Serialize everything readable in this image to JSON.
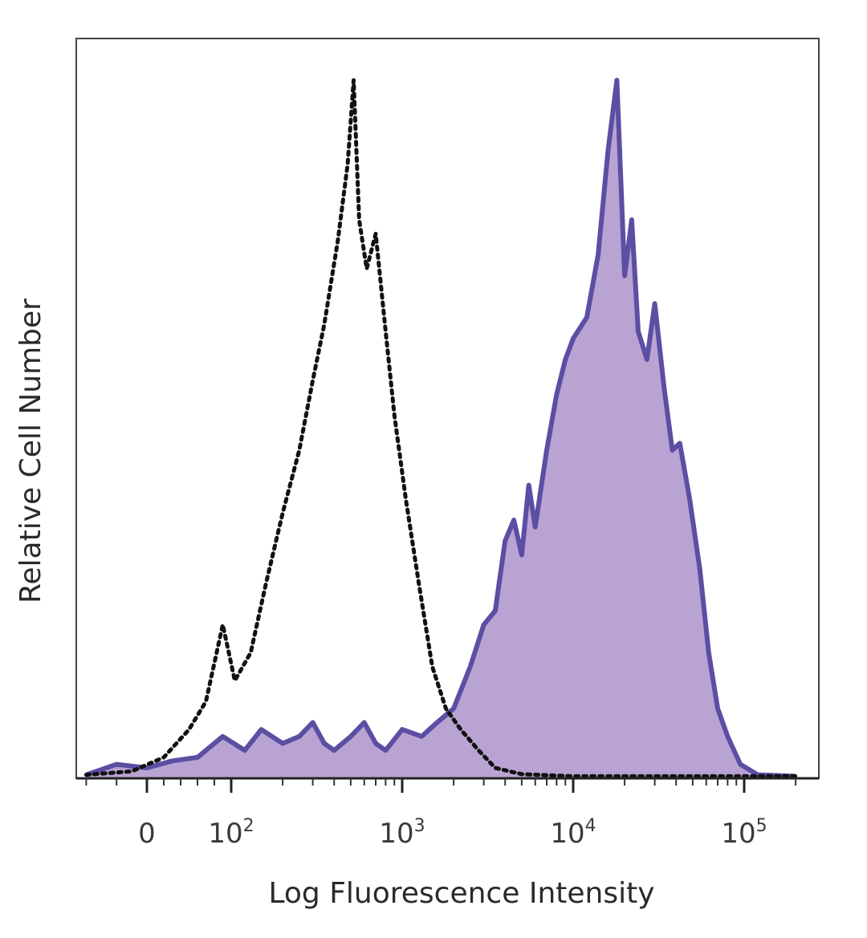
{
  "chart_data": {
    "type": "area",
    "xlabel": "Log Fluorescence Intensity",
    "ylabel": "Relative Cell Number",
    "x_scale": "biexponential",
    "xlim": [
      -50,
      250000
    ],
    "ylim": [
      0,
      100
    ],
    "grid": false,
    "x_ticks": [
      {
        "value": 0,
        "label": "0",
        "base": "0",
        "exp": ""
      },
      {
        "value": 100,
        "label": "10^2",
        "base": "10",
        "exp": "2"
      },
      {
        "value": 1000,
        "label": "10^3",
        "base": "10",
        "exp": "3"
      },
      {
        "value": 10000,
        "label": "10^4",
        "base": "10",
        "exp": "4"
      },
      {
        "value": 100000,
        "label": "10^5",
        "base": "10",
        "exp": "5"
      }
    ],
    "series": [
      {
        "style": "dotted black outline",
        "color": "#111111",
        "points": [
          {
            "x": -40,
            "y": 0.5
          },
          {
            "x": -10,
            "y": 1
          },
          {
            "x": 20,
            "y": 3
          },
          {
            "x": 50,
            "y": 7
          },
          {
            "x": 70,
            "y": 11
          },
          {
            "x": 90,
            "y": 22
          },
          {
            "x": 105,
            "y": 14
          },
          {
            "x": 130,
            "y": 18
          },
          {
            "x": 160,
            "y": 28
          },
          {
            "x": 200,
            "y": 38
          },
          {
            "x": 250,
            "y": 47
          },
          {
            "x": 300,
            "y": 57
          },
          {
            "x": 350,
            "y": 65
          },
          {
            "x": 420,
            "y": 77
          },
          {
            "x": 480,
            "y": 88
          },
          {
            "x": 520,
            "y": 100
          },
          {
            "x": 560,
            "y": 80
          },
          {
            "x": 620,
            "y": 73
          },
          {
            "x": 700,
            "y": 78
          },
          {
            "x": 800,
            "y": 64
          },
          {
            "x": 900,
            "y": 52
          },
          {
            "x": 1050,
            "y": 40
          },
          {
            "x": 1250,
            "y": 28
          },
          {
            "x": 1500,
            "y": 16
          },
          {
            "x": 1800,
            "y": 10
          },
          {
            "x": 2200,
            "y": 7
          },
          {
            "x": 2800,
            "y": 4
          },
          {
            "x": 3500,
            "y": 1.5
          },
          {
            "x": 5000,
            "y": 0.6
          },
          {
            "x": 10000,
            "y": 0.3
          },
          {
            "x": 50000,
            "y": 0.3
          },
          {
            "x": 200000,
            "y": 0.3
          }
        ]
      },
      {
        "style": "filled purple",
        "color": "#5b4ea3",
        "fill": "#b9a3d3",
        "points": [
          {
            "x": -40,
            "y": 0.5
          },
          {
            "x": -20,
            "y": 2
          },
          {
            "x": 0,
            "y": 1.5
          },
          {
            "x": 30,
            "y": 2.5
          },
          {
            "x": 60,
            "y": 3
          },
          {
            "x": 90,
            "y": 6
          },
          {
            "x": 120,
            "y": 4
          },
          {
            "x": 150,
            "y": 7
          },
          {
            "x": 200,
            "y": 5
          },
          {
            "x": 250,
            "y": 6
          },
          {
            "x": 300,
            "y": 8
          },
          {
            "x": 350,
            "y": 5
          },
          {
            "x": 400,
            "y": 4
          },
          {
            "x": 500,
            "y": 6
          },
          {
            "x": 600,
            "y": 8
          },
          {
            "x": 700,
            "y": 5
          },
          {
            "x": 800,
            "y": 4
          },
          {
            "x": 1000,
            "y": 7
          },
          {
            "x": 1300,
            "y": 6
          },
          {
            "x": 1600,
            "y": 8
          },
          {
            "x": 2000,
            "y": 10
          },
          {
            "x": 2500,
            "y": 16
          },
          {
            "x": 3000,
            "y": 22
          },
          {
            "x": 3500,
            "y": 24
          },
          {
            "x": 4000,
            "y": 34
          },
          {
            "x": 4500,
            "y": 37
          },
          {
            "x": 5000,
            "y": 32
          },
          {
            "x": 5500,
            "y": 42
          },
          {
            "x": 6000,
            "y": 36
          },
          {
            "x": 7000,
            "y": 47
          },
          {
            "x": 8000,
            "y": 55
          },
          {
            "x": 9000,
            "y": 60
          },
          {
            "x": 10000,
            "y": 63
          },
          {
            "x": 12000,
            "y": 66
          },
          {
            "x": 14000,
            "y": 75
          },
          {
            "x": 16000,
            "y": 90
          },
          {
            "x": 18000,
            "y": 100
          },
          {
            "x": 20000,
            "y": 72
          },
          {
            "x": 22000,
            "y": 80
          },
          {
            "x": 24000,
            "y": 64
          },
          {
            "x": 27000,
            "y": 60
          },
          {
            "x": 30000,
            "y": 68
          },
          {
            "x": 34000,
            "y": 56
          },
          {
            "x": 38000,
            "y": 47
          },
          {
            "x": 42000,
            "y": 48
          },
          {
            "x": 48000,
            "y": 40
          },
          {
            "x": 55000,
            "y": 30
          },
          {
            "x": 62000,
            "y": 18
          },
          {
            "x": 70000,
            "y": 10
          },
          {
            "x": 80000,
            "y": 6
          },
          {
            "x": 95000,
            "y": 2
          },
          {
            "x": 120000,
            "y": 0.5
          },
          {
            "x": 200000,
            "y": 0.3
          }
        ]
      }
    ]
  }
}
